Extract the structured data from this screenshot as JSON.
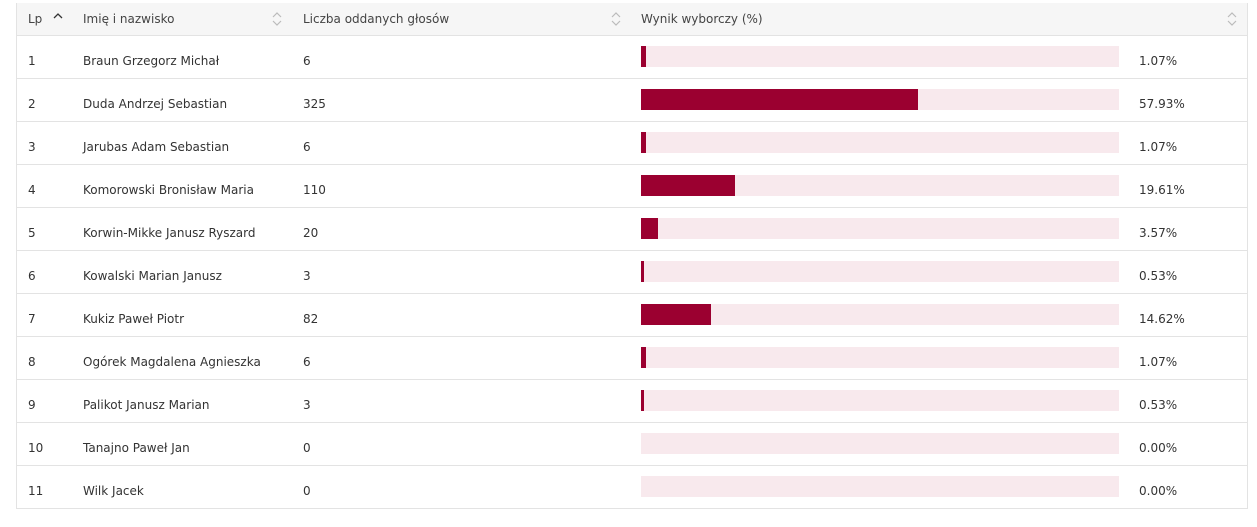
{
  "colors": {
    "accent": "#9b0030",
    "track": "#f8e9ed",
    "border": "#e3e3e3",
    "header_bg": "#f6f6f6"
  },
  "header": {
    "lp": "Lp",
    "name": "Imię i nazwisko",
    "votes": "Liczba oddanych głosów",
    "result": "Wynik wyborczy (%)"
  },
  "rows": [
    {
      "lp": "1",
      "name": "Braun Grzegorz Michał",
      "votes": "6",
      "pct": "1.07%",
      "value": 1.07
    },
    {
      "lp": "2",
      "name": "Duda Andrzej Sebastian",
      "votes": "325",
      "pct": "57.93%",
      "value": 57.93
    },
    {
      "lp": "3",
      "name": "Jarubas Adam Sebastian",
      "votes": "6",
      "pct": "1.07%",
      "value": 1.07
    },
    {
      "lp": "4",
      "name": "Komorowski Bronisław Maria",
      "votes": "110",
      "pct": "19.61%",
      "value": 19.61
    },
    {
      "lp": "5",
      "name": "Korwin-Mikke Janusz Ryszard",
      "votes": "20",
      "pct": "3.57%",
      "value": 3.57
    },
    {
      "lp": "6",
      "name": "Kowalski Marian Janusz",
      "votes": "3",
      "pct": "0.53%",
      "value": 0.53
    },
    {
      "lp": "7",
      "name": "Kukiz Paweł Piotr",
      "votes": "82",
      "pct": "14.62%",
      "value": 14.62
    },
    {
      "lp": "8",
      "name": "Ogórek Magdalena Agnieszka",
      "votes": "6",
      "pct": "1.07%",
      "value": 1.07
    },
    {
      "lp": "9",
      "name": "Palikot Janusz Marian",
      "votes": "3",
      "pct": "0.53%",
      "value": 0.53
    },
    {
      "lp": "10",
      "name": "Tanajno Paweł Jan",
      "votes": "0",
      "pct": "0.00%",
      "value": 0
    },
    {
      "lp": "11",
      "name": "Wilk Jacek",
      "votes": "0",
      "pct": "0.00%",
      "value": 0
    }
  ]
}
